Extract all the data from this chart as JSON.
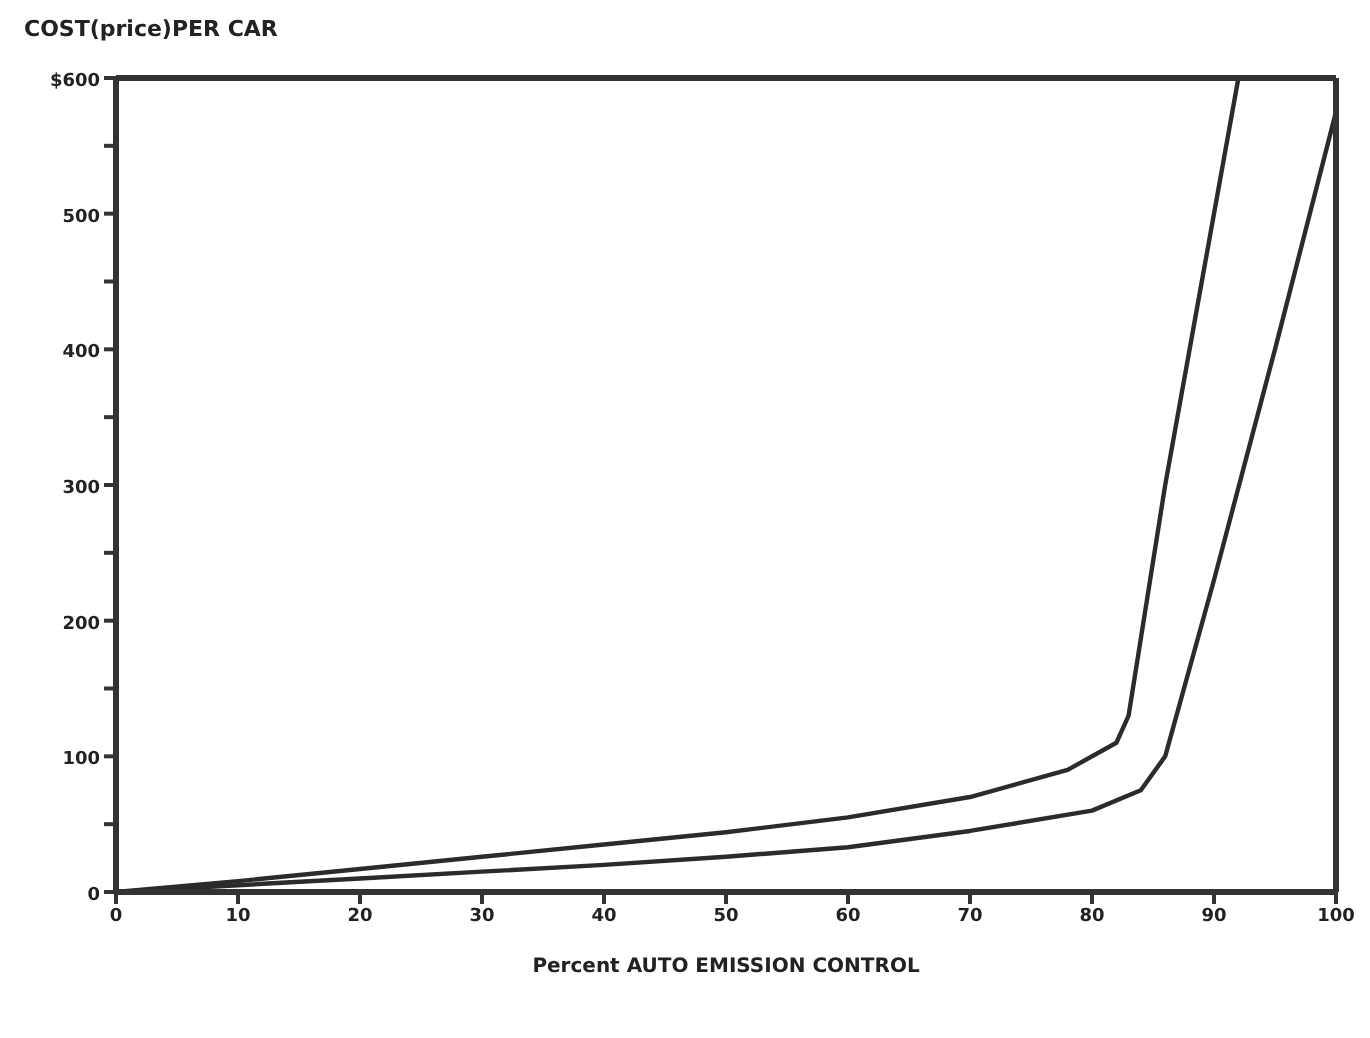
{
  "chart_data": {
    "type": "line",
    "title": "COST(price)PER CAR",
    "xlabel": "Percent AUTO EMISSION CONTROL",
    "xlim": [
      0,
      100
    ],
    "xticks": [
      0,
      10,
      20,
      30,
      40,
      50,
      60,
      70,
      80,
      90,
      100
    ],
    "ylim": [
      0,
      600
    ],
    "yticks": [
      0,
      {
        "value": 50,
        "label": null
      },
      100,
      {
        "value": 150,
        "label": null
      },
      200,
      {
        "value": 250,
        "label": null
      },
      300,
      {
        "value": 350,
        "label": null
      },
      400,
      {
        "value": 450,
        "label": null
      },
      500,
      {
        "value": 550,
        "label": null
      },
      {
        "value": 600,
        "label": "$600"
      }
    ],
    "marker": "none",
    "line_style": "solid",
    "series": [
      {
        "color": "#2b2b2b",
        "x": [
          0,
          10,
          20,
          30,
          40,
          50,
          60,
          70,
          78,
          82,
          83,
          86,
          89,
          92
        ],
        "values": [
          0,
          8,
          17,
          26,
          35,
          44,
          55,
          70,
          90,
          110,
          130,
          300,
          450,
          600
        ]
      },
      {
        "color": "#2b2b2b",
        "x": [
          0,
          10,
          20,
          30,
          40,
          50,
          60,
          70,
          80,
          84,
          86,
          90,
          95,
          100
        ],
        "values": [
          0,
          5,
          10,
          15,
          20,
          26,
          33,
          45,
          60,
          75,
          100,
          230,
          400,
          575
        ]
      }
    ]
  }
}
